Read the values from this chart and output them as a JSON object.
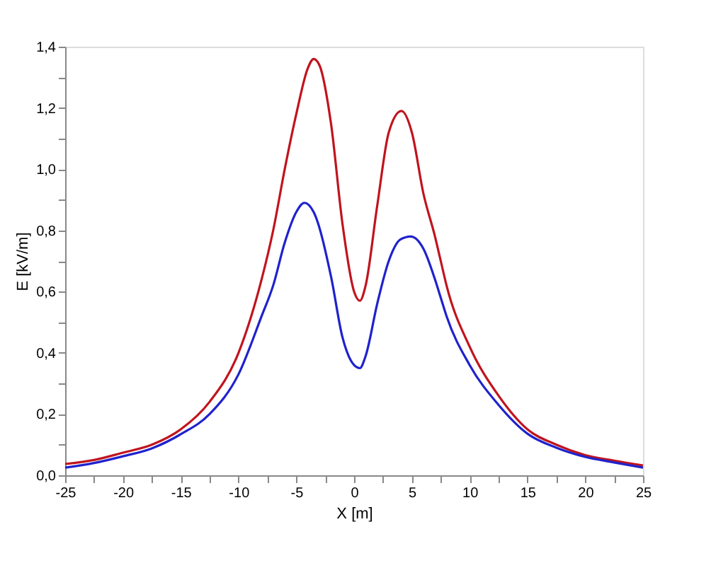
{
  "chart_data": {
    "type": "line",
    "xlabel": "X [m]",
    "ylabel": "E [kV/m]",
    "grid": false,
    "legend": false,
    "marker": "none",
    "line_style": "solid",
    "xlim": [
      -25,
      25
    ],
    "ylim": [
      0,
      1.4
    ],
    "xticks": [
      -25,
      {
        "value": -22.5,
        "label": null
      },
      -20,
      {
        "value": -17.5,
        "label": null
      },
      -15,
      {
        "value": -12.5,
        "label": null
      },
      -10,
      {
        "value": -7.5,
        "label": null
      },
      -5,
      {
        "value": -2.5,
        "label": null
      },
      0,
      {
        "value": 2.5,
        "label": null
      },
      5,
      {
        "value": 7.5,
        "label": null
      },
      10,
      {
        "value": 12.5,
        "label": null
      },
      15,
      {
        "value": 17.5,
        "label": null
      },
      20,
      {
        "value": 22.5,
        "label": null
      },
      25
    ],
    "yticks": [
      {
        "value": 0,
        "label": "0,0"
      },
      {
        "value": 0.1,
        "label": null
      },
      {
        "value": 0.2,
        "label": "0,2"
      },
      {
        "value": 0.3,
        "label": null
      },
      {
        "value": 0.4,
        "label": "0,4"
      },
      {
        "value": 0.5,
        "label": null
      },
      {
        "value": 0.6,
        "label": "0,6"
      },
      {
        "value": 0.7,
        "label": null
      },
      {
        "value": 0.8,
        "label": "0,8"
      },
      {
        "value": 0.9,
        "label": null
      },
      {
        "value": 1.0,
        "label": "1,0"
      },
      {
        "value": 1.1,
        "label": null
      },
      {
        "value": 1.2,
        "label": "1,2"
      },
      {
        "value": 1.3,
        "label": null
      },
      {
        "value": 1.4,
        "label": "1,4"
      }
    ],
    "series": [
      {
        "color": "#c0141e",
        "x": [
          -25,
          -22.5,
          -20,
          -17.5,
          -15,
          -12.5,
          -10,
          -8,
          -7,
          -6,
          -5,
          -4,
          -3.5,
          -3,
          -2,
          -1,
          0,
          0.5,
          1,
          2,
          3,
          4.1,
          5,
          6,
          7,
          7.5,
          8,
          10,
          12.5,
          15,
          17.5,
          20,
          22.5,
          25
        ],
        "values": [
          0.037,
          0.05,
          0.074,
          0.1,
          0.15,
          0.24,
          0.4,
          0.64,
          0.8,
          1.0,
          1.18,
          1.33,
          1.36,
          1.34,
          1.15,
          0.82,
          0.6,
          0.57,
          0.62,
          0.88,
          1.12,
          1.19,
          1.12,
          0.92,
          0.78,
          0.7,
          0.62,
          0.42,
          0.26,
          0.15,
          0.1,
          0.066,
          0.048,
          0.032
        ]
      },
      {
        "color": "#1f22cc",
        "x": [
          -25,
          -22.5,
          -20,
          -17.5,
          -15,
          -12.5,
          -10,
          -8,
          -7,
          -6,
          -5,
          -4.3,
          -3.5,
          -2,
          -1,
          0,
          0.5,
          1,
          2,
          3,
          4,
          4.9,
          6,
          7,
          7.5,
          8,
          10,
          12.5,
          15,
          17.5,
          20,
          22.5,
          25
        ],
        "values": [
          0.025,
          0.04,
          0.062,
          0.088,
          0.134,
          0.2,
          0.33,
          0.52,
          0.62,
          0.76,
          0.86,
          0.89,
          0.86,
          0.65,
          0.45,
          0.36,
          0.35,
          0.39,
          0.56,
          0.7,
          0.77,
          0.78,
          0.74,
          0.64,
          0.58,
          0.52,
          0.36,
          0.23,
          0.136,
          0.09,
          0.06,
          0.042,
          0.025
        ]
      }
    ]
  }
}
